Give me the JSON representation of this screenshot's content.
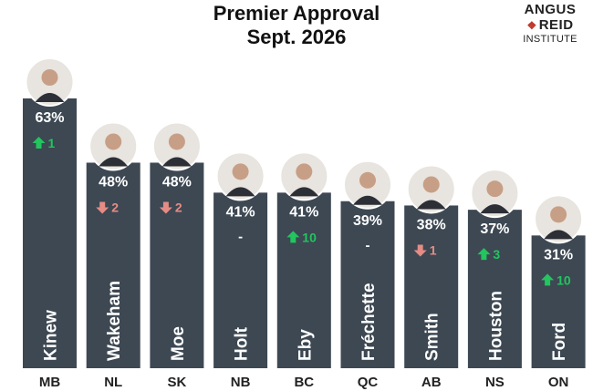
{
  "title_line1": "Premier Approval",
  "title_line2": "Sept. 2026",
  "logo": {
    "line1": "ANGUS",
    "line2": "REID",
    "line3": "INSTITUTE"
  },
  "colors": {
    "bar": "#3d4853",
    "up": "#22c55e",
    "down": "#e58c84",
    "text_light": "#ffffff",
    "axis_text": "#222222"
  },
  "chart_data": {
    "type": "bar",
    "title": "Premier Approval Sept. 2026",
    "categories": [
      "MB",
      "NL",
      "SK",
      "NB",
      "BC",
      "QC",
      "AB",
      "NS",
      "ON"
    ],
    "names": [
      "Kinew",
      "Wakeham",
      "Moe",
      "Holt",
      "Eby",
      "Fréchette",
      "Smith",
      "Houston",
      "Ford"
    ],
    "values": [
      63,
      48,
      48,
      41,
      41,
      39,
      38,
      37,
      31
    ],
    "value_labels": [
      "63%",
      "48%",
      "48%",
      "41%",
      "41%",
      "39%",
      "38%",
      "37%",
      "31%"
    ],
    "changes": [
      {
        "dir": "up",
        "amount": "1"
      },
      {
        "dir": "down",
        "amount": "2"
      },
      {
        "dir": "down",
        "amount": "2"
      },
      {
        "dir": "none",
        "amount": "-"
      },
      {
        "dir": "up",
        "amount": "10"
      },
      {
        "dir": "none",
        "amount": "-"
      },
      {
        "dir": "down",
        "amount": "1"
      },
      {
        "dir": "up",
        "amount": "3"
      },
      {
        "dir": "up",
        "amount": "10"
      }
    ],
    "ylim": [
      0,
      63
    ],
    "xlabel": "",
    "ylabel": "",
    "grid": false,
    "legend": "none"
  }
}
